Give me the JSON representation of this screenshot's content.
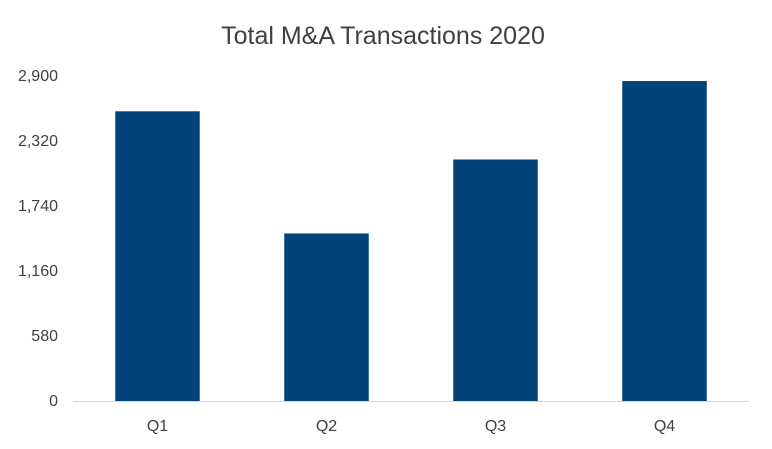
{
  "chart_data": {
    "type": "bar",
    "title": "Total M&A Transactions 2020",
    "xlabel": "",
    "ylabel": "",
    "categories": [
      "Q1",
      "Q2",
      "Q3",
      "Q4"
    ],
    "values": [
      2585,
      1495,
      2155,
      2855
    ],
    "ylim": [
      0,
      2900
    ],
    "yticks": [
      0,
      580,
      1160,
      1740,
      2320,
      2900
    ],
    "ytick_labels": [
      "0",
      "580",
      "1,160",
      "1,740",
      "2,320",
      "2,900"
    ],
    "grid": false,
    "legend": "none",
    "bar_color": "#00427A",
    "axis_color": "#D9D9D9"
  }
}
